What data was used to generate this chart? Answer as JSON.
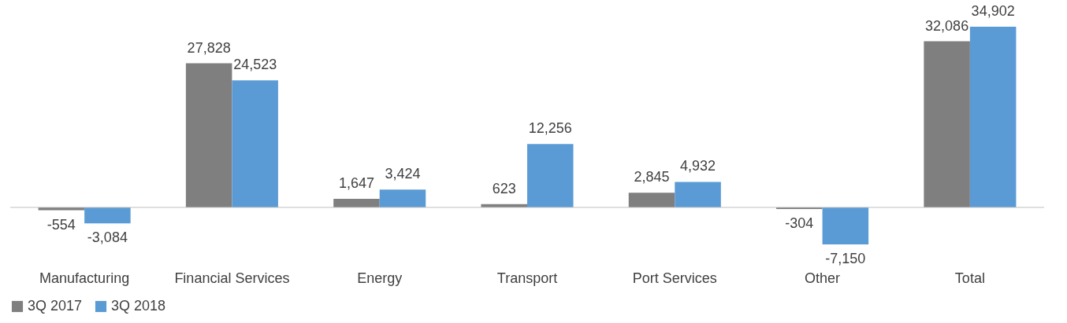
{
  "chart_data": {
    "type": "bar",
    "categories": [
      "Manufacturing",
      "Financial Services",
      "Energy",
      "Transport",
      "Port Services",
      "Other",
      "Total"
    ],
    "series": [
      {
        "name": "3Q 2017",
        "color": "#7f7f7f",
        "value_labels": [
          "-554",
          "27,828",
          "1,647",
          "623",
          "2,845",
          "-304",
          "32,086"
        ],
        "values": [
          -554,
          27828,
          1647,
          623,
          2845,
          -304,
          32086
        ]
      },
      {
        "name": "3Q 2018",
        "color": "#5b9bd5",
        "value_labels": [
          "-3,084",
          "24,523",
          "3,424",
          "12,256",
          "4,932",
          "-7,150",
          "34,902"
        ],
        "values": [
          -3084,
          24523,
          3424,
          12256,
          4932,
          -7150,
          34902
        ]
      }
    ],
    "legend": "bottom",
    "grid": false
  }
}
